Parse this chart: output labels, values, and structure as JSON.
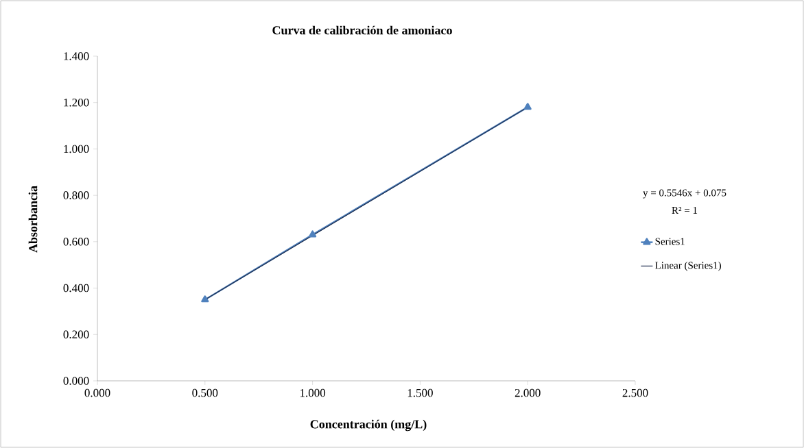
{
  "chart_data": {
    "type": "line",
    "title": "Curva  de calibración  de amoniaco",
    "xlabel": "Concentración  (mg/L)",
    "ylabel": "Absorbancia",
    "xlim": [
      0,
      2.5
    ],
    "ylim": [
      0,
      1.4
    ],
    "xticks": [
      {
        "value": 0,
        "label": "0.000"
      },
      {
        "value": 0.5,
        "label": "0.500"
      },
      {
        "value": 1,
        "label": "1.000"
      },
      {
        "value": 1.5,
        "label": "1.500"
      },
      {
        "value": 2,
        "label": "2.000"
      },
      {
        "value": 2.5,
        "label": "2.500"
      }
    ],
    "yticks": [
      {
        "value": 0,
        "label": "0.000"
      },
      {
        "value": 0.2,
        "label": "0.200"
      },
      {
        "value": 0.4,
        "label": "0.400"
      },
      {
        "value": 0.6,
        "label": "0.600"
      },
      {
        "value": 0.8,
        "label": "0.800"
      },
      {
        "value": 1.0,
        "label": "1.000"
      },
      {
        "value": 1.2,
        "label": "1.200"
      },
      {
        "value": 1.4,
        "label": "1.400"
      }
    ],
    "series": [
      {
        "name": "Series1",
        "color": "#4f81bd",
        "marker": "triangle",
        "x": [
          0.5,
          1.0,
          2.0
        ],
        "values": [
          0.35,
          0.63,
          1.18
        ]
      },
      {
        "name": "Linear (Series1)",
        "color": "#1f2f4f",
        "marker": "none",
        "x": [
          0.5,
          2.0
        ],
        "values": [
          0.35,
          1.18
        ]
      }
    ],
    "annotations": [
      "y = 0.5546x   + 0.075",
      "R² = 1"
    ],
    "legend": "right",
    "grid": false
  }
}
